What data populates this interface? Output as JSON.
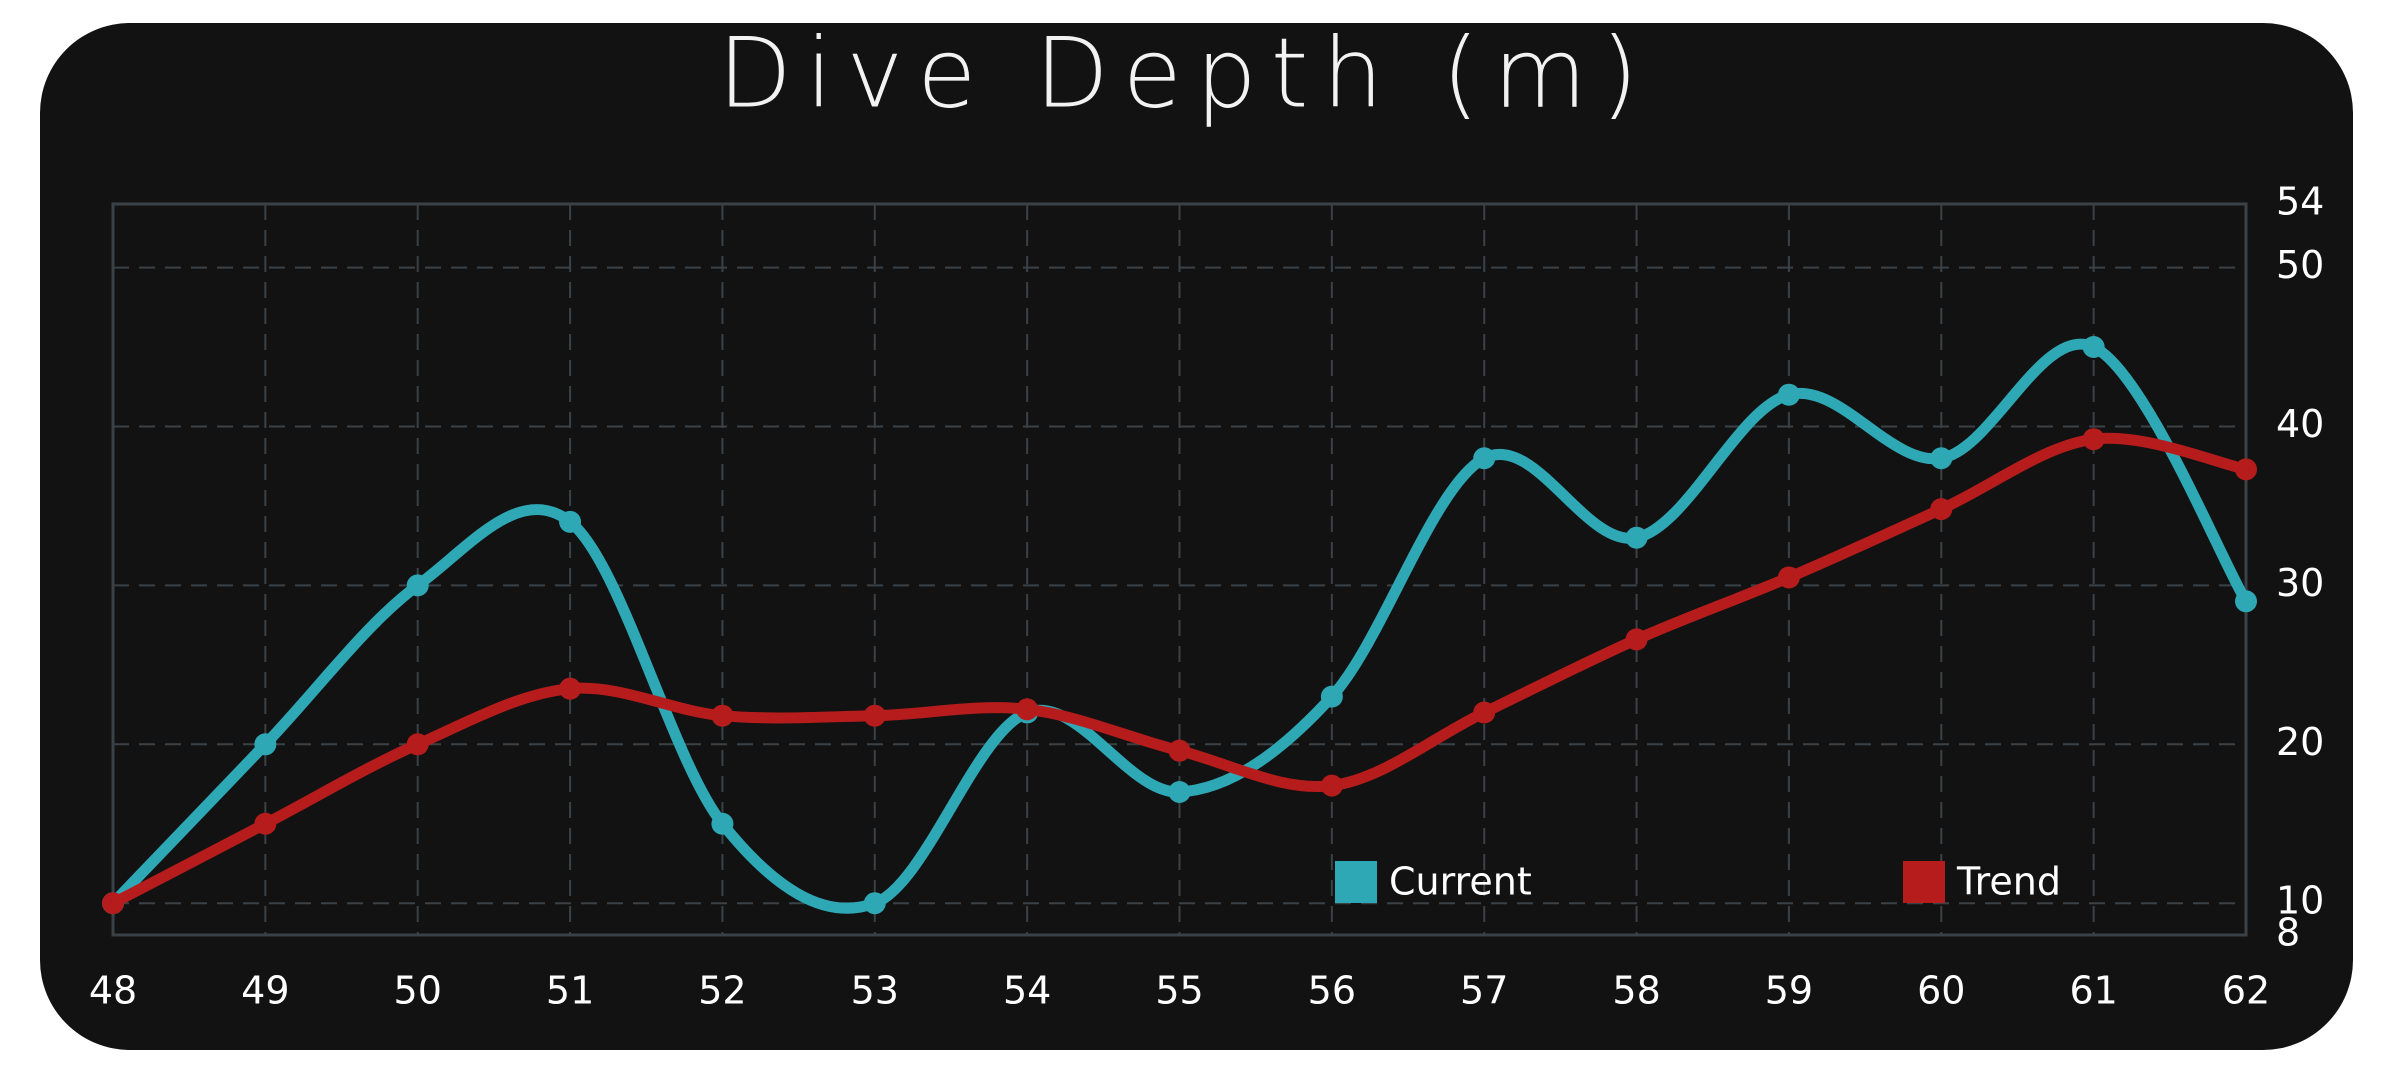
{
  "chart_data": {
    "type": "line",
    "title": "Dive Depth (m)",
    "x": [
      48,
      49,
      50,
      51,
      52,
      53,
      54,
      55,
      56,
      57,
      58,
      59,
      60,
      61,
      62
    ],
    "series": [
      {
        "name": "Current",
        "color": "#2ea8b5",
        "values": [
          10,
          20,
          30,
          34,
          15,
          10,
          22,
          17,
          23,
          38,
          33,
          42,
          38,
          45,
          29
        ]
      },
      {
        "name": "Trend",
        "color": "#b71c1c",
        "values": [
          10,
          15,
          20,
          23.5,
          21.8,
          21.8,
          22.2,
          19.6,
          17.4,
          22,
          26.6,
          30.5,
          34.8,
          39.2,
          37.3
        ]
      }
    ],
    "xlim": [
      48,
      62
    ],
    "xticks": [
      48,
      49,
      50,
      51,
      52,
      53,
      54,
      55,
      56,
      57,
      58,
      59,
      60,
      61,
      62
    ],
    "ylim": [
      8,
      54
    ],
    "yticks": [
      8,
      10,
      20,
      30,
      40,
      50,
      54
    ],
    "grid": true,
    "smooth": true
  }
}
